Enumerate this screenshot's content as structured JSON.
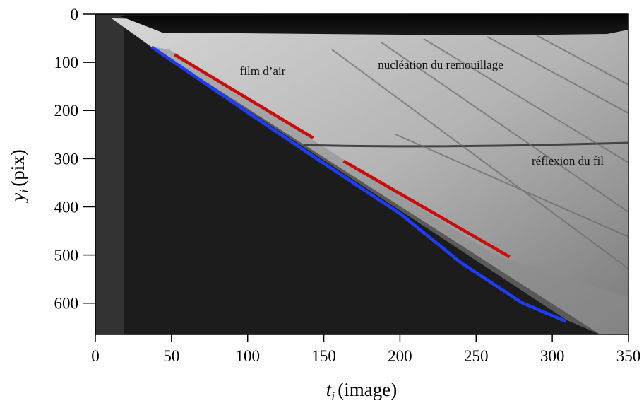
{
  "chart_data": {
    "type": "line",
    "xlabel_var": "t",
    "xlabel_sub": "i",
    "xlabel_unit": "(image)",
    "ylabel_var": "y",
    "ylabel_sub": "i",
    "ylabel_unit": "(pix)",
    "xlim": [
      0,
      350
    ],
    "ylim": [
      665,
      0
    ],
    "y_inverted": true,
    "xticks": [
      0,
      50,
      100,
      150,
      200,
      250,
      300,
      350
    ],
    "yticks": [
      0,
      100,
      200,
      300,
      400,
      500,
      600
    ],
    "series": [
      {
        "color": "#1f3cf5",
        "x": [
          37,
          100,
          150,
          200,
          240,
          280,
          309
        ],
        "values": [
          68,
          204,
          310,
          414,
          516,
          599,
          638
        ]
      },
      {
        "color": "#c80d0d",
        "x": [
          52,
          143,
          null,
          163,
          272
        ],
        "values": [
          84,
          257,
          null,
          305,
          504
        ]
      }
    ],
    "annotations": [
      "film d’air",
      "nucléation du remouillage",
      "réflexion du fil"
    ]
  }
}
